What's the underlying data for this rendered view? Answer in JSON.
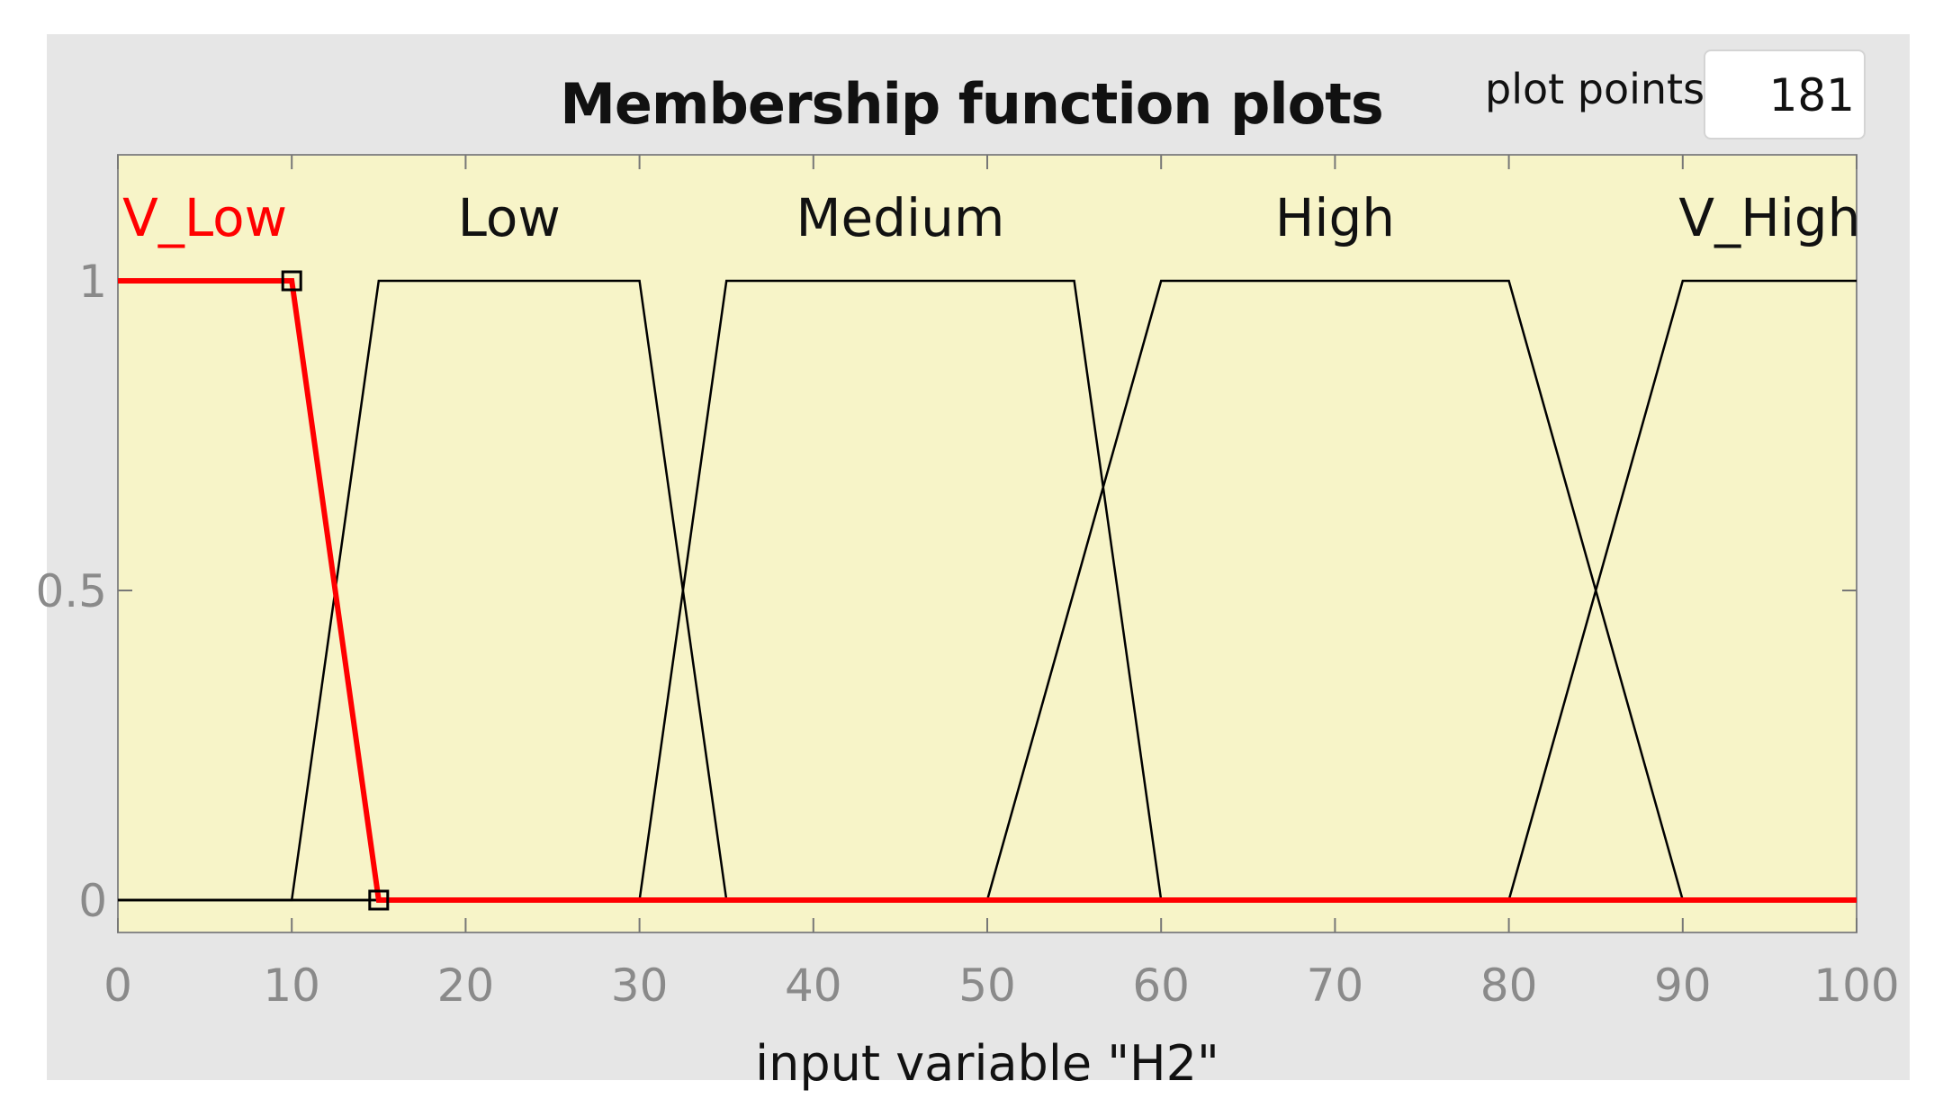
{
  "header": {
    "title": "Membership function plots",
    "plot_points_label": "plot points:",
    "plot_points_value": "181"
  },
  "colors": {
    "panel": "#e6e6e6",
    "plot_background": "#f7f4c8",
    "line": "#000000",
    "selected": "#ff0000"
  },
  "chart_data": {
    "type": "line",
    "title": "Membership function plots",
    "xlabel": "input variable \"H2\"",
    "ylabel": "",
    "xlim": [
      0,
      100
    ],
    "ylim": [
      -0.05,
      1.2
    ],
    "xticks": [
      0,
      10,
      20,
      30,
      40,
      50,
      60,
      70,
      80,
      90,
      100
    ],
    "yticks": [
      0,
      0.5,
      1
    ],
    "ytick_labels": [
      "0",
      "0.5",
      "1"
    ],
    "grid": false,
    "legend": "none",
    "selected_series": "V_Low",
    "series": [
      {
        "name": "V_Low",
        "label_x": 5,
        "shape": "trapmf",
        "points": [
          [
            0,
            1
          ],
          [
            10,
            1
          ],
          [
            15,
            0
          ],
          [
            100,
            0
          ]
        ]
      },
      {
        "name": "Low",
        "label_x": 22.5,
        "shape": "trapmf",
        "points": [
          [
            0,
            0
          ],
          [
            10,
            0
          ],
          [
            15,
            1
          ],
          [
            30,
            1
          ],
          [
            35,
            0
          ],
          [
            100,
            0
          ]
        ]
      },
      {
        "name": "Medium",
        "label_x": 45,
        "shape": "trapmf",
        "points": [
          [
            0,
            0
          ],
          [
            30,
            0
          ],
          [
            35,
            1
          ],
          [
            55,
            1
          ],
          [
            60,
            0
          ],
          [
            100,
            0
          ]
        ]
      },
      {
        "name": "High",
        "label_x": 70,
        "shape": "trapmf",
        "points": [
          [
            0,
            0
          ],
          [
            50,
            0
          ],
          [
            60,
            1
          ],
          [
            80,
            1
          ],
          [
            90,
            0
          ],
          [
            100,
            0
          ]
        ]
      },
      {
        "name": "V_High",
        "label_x": 95,
        "shape": "trapmf",
        "points": [
          [
            0,
            0
          ],
          [
            80,
            0
          ],
          [
            90,
            1
          ],
          [
            100,
            1
          ]
        ]
      }
    ]
  }
}
